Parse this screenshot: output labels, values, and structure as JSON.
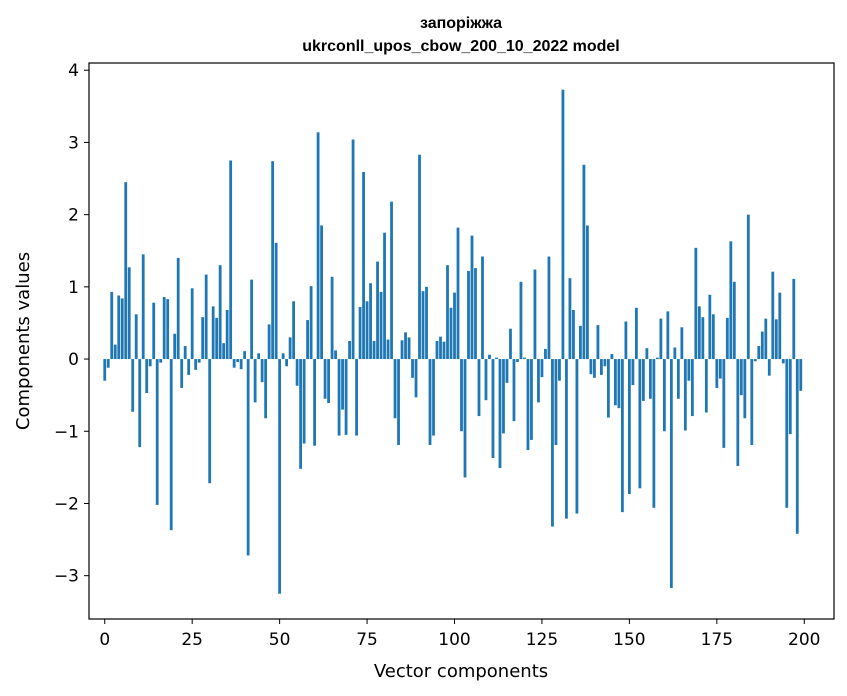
{
  "chart_data": {
    "type": "bar",
    "title": "запоріжжа",
    "subtitle": "ukrconll_upos_cbow_200_10_2022 model",
    "xlabel": "Vector components",
    "ylabel": "Components values",
    "xlim": [
      -4.5,
      208.5
    ],
    "ylim": [
      -3.6,
      4.1
    ],
    "xticks": [
      0,
      25,
      50,
      75,
      100,
      125,
      150,
      175,
      200
    ],
    "yticks": [
      -3,
      -2,
      -1,
      0,
      1,
      2,
      3,
      4
    ],
    "xtick_labels": [
      "0",
      "25",
      "50",
      "75",
      "100",
      "125",
      "150",
      "175",
      "200"
    ],
    "ytick_labels": [
      "−3",
      "−2",
      "−1",
      "0",
      "1",
      "2",
      "3",
      "4"
    ],
    "grid": false,
    "bar_color": "#1f77b4",
    "x": [
      0,
      1,
      2,
      3,
      4,
      5,
      6,
      7,
      8,
      9,
      10,
      11,
      12,
      13,
      14,
      15,
      16,
      17,
      18,
      19,
      20,
      21,
      22,
      23,
      24,
      25,
      26,
      27,
      28,
      29,
      30,
      31,
      32,
      33,
      34,
      35,
      36,
      37,
      38,
      39,
      40,
      41,
      42,
      43,
      44,
      45,
      46,
      47,
      48,
      49,
      50,
      51,
      52,
      53,
      54,
      55,
      56,
      57,
      58,
      59,
      60,
      61,
      62,
      63,
      64,
      65,
      66,
      67,
      68,
      69,
      70,
      71,
      72,
      73,
      74,
      75,
      76,
      77,
      78,
      79,
      80,
      81,
      82,
      83,
      84,
      85,
      86,
      87,
      88,
      89,
      90,
      91,
      92,
      93,
      94,
      95,
      96,
      97,
      98,
      99,
      100,
      101,
      102,
      103,
      104,
      105,
      106,
      107,
      108,
      109,
      110,
      111,
      112,
      113,
      114,
      115,
      116,
      117,
      118,
      119,
      120,
      121,
      122,
      123,
      124,
      125,
      126,
      127,
      128,
      129,
      130,
      131,
      132,
      133,
      134,
      135,
      136,
      137,
      138,
      139,
      140,
      141,
      142,
      143,
      144,
      145,
      146,
      147,
      148,
      149,
      150,
      151,
      152,
      153,
      154,
      155,
      156,
      157,
      158,
      159,
      160,
      161,
      162,
      163,
      164,
      165,
      166,
      167,
      168,
      169,
      170,
      171,
      172,
      173,
      174,
      175,
      176,
      177,
      178,
      179,
      180,
      181,
      182,
      183,
      184,
      185,
      186,
      187,
      188,
      189,
      190,
      191,
      192,
      193,
      194,
      195,
      196,
      197,
      198,
      199
    ],
    "values": [
      -0.3,
      -0.12,
      0.93,
      0.2,
      0.88,
      0.84,
      2.45,
      1.27,
      -0.73,
      0.62,
      -1.22,
      1.45,
      -0.47,
      -0.1,
      0.78,
      -2.02,
      -0.05,
      0.86,
      0.83,
      -2.37,
      0.35,
      1.4,
      -0.4,
      0.18,
      -0.22,
      0.98,
      -0.15,
      -0.05,
      0.58,
      1.17,
      -1.72,
      0.73,
      0.57,
      1.3,
      0.22,
      0.68,
      2.75,
      -0.12,
      -0.04,
      -0.14,
      0.11,
      -2.72,
      1.1,
      -0.6,
      0.08,
      -0.32,
      -0.82,
      0.48,
      2.74,
      1.61,
      -3.25,
      0.08,
      -0.1,
      0.3,
      0.8,
      -0.37,
      -1.52,
      -1.17,
      0.54,
      1.01,
      -1.2,
      3.14,
      1.85,
      -0.55,
      -0.61,
      1.14,
      0.12,
      -1.06,
      -0.7,
      -1.05,
      0.25,
      3.04,
      -1.06,
      0.72,
      2.59,
      0.8,
      1.05,
      0.25,
      1.35,
      0.93,
      1.75,
      0.27,
      2.18,
      -0.82,
      -1.19,
      0.26,
      0.37,
      0.3,
      -0.26,
      -0.53,
      2.83,
      0.94,
      1.0,
      -1.19,
      -1.06,
      0.25,
      0.31,
      0.24,
      1.3,
      0.71,
      0.92,
      1.82,
      -1.0,
      -1.64,
      1.22,
      1.71,
      1.26,
      -0.79,
      1.42,
      -0.57,
      0.06,
      -1.37,
      0.02,
      -1.51,
      -1.03,
      -0.33,
      0.42,
      -0.86,
      -0.04,
      1.07,
      0.02,
      -1.26,
      -1.12,
      1.24,
      -0.6,
      -0.25,
      0.14,
      1.42,
      -2.32,
      -1.19,
      -0.3,
      3.73,
      -2.21,
      1.12,
      0.68,
      -2.14,
      0.46,
      2.69,
      1.85,
      -0.21,
      -0.26,
      0.47,
      -0.22,
      -0.1,
      -0.81,
      0.07,
      -0.64,
      -0.68,
      -2.12,
      0.52,
      -1.87,
      -0.36,
      0.71,
      -1.79,
      -0.58,
      0.15,
      -0.55,
      -2.06,
      0.02,
      0.56,
      -1.0,
      0.66,
      -3.17,
      0.16,
      -0.55,
      0.44,
      -0.99,
      -0.3,
      -0.79,
      1.54,
      0.73,
      0.58,
      -0.74,
      0.89,
      0.62,
      -0.4,
      -0.27,
      -1.23,
      0.57,
      1.63,
      1.07,
      -1.48,
      -0.5,
      -0.82,
      2.0,
      -1.19,
      -0.03,
      0.18,
      0.38,
      0.56,
      -0.23,
      1.21,
      0.55,
      0.92,
      -0.06,
      -2.06,
      -1.04,
      1.11,
      -2.42,
      -0.44
    ]
  }
}
